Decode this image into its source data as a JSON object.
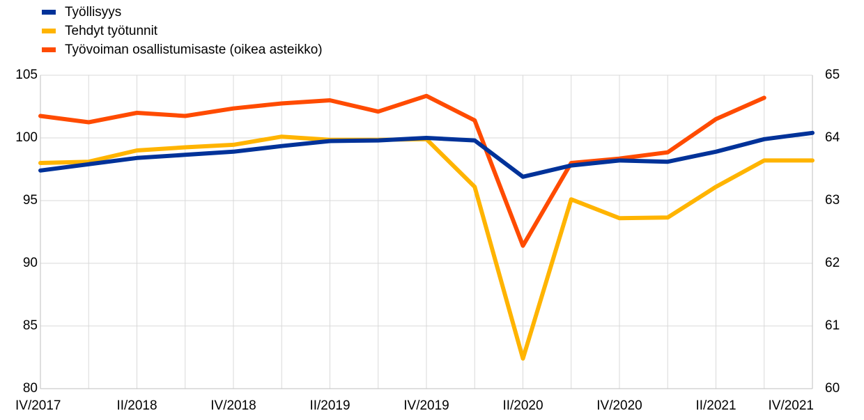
{
  "chart_data": {
    "type": "line",
    "categories": [
      "IV/2017",
      "I/2018",
      "II/2018",
      "III/2018",
      "IV/2018",
      "I/2019",
      "II/2019",
      "III/2019",
      "IV/2019",
      "I/2020",
      "II/2020",
      "III/2020",
      "IV/2020",
      "I/2021",
      "II/2021",
      "III/2021",
      "IV/2021"
    ],
    "x_tick_labels": [
      "IV/2017",
      "II/2018",
      "IV/2018",
      "II/2019",
      "IV/2019",
      "II/2020",
      "IV/2020",
      "II/2021",
      "IV/2021"
    ],
    "left_axis": {
      "ylim": [
        80,
        105
      ],
      "ticks": [
        "80",
        "85",
        "90",
        "95",
        "100",
        "105"
      ]
    },
    "right_axis": {
      "ylim": [
        60,
        65
      ],
      "ticks": [
        "60",
        "61",
        "62",
        "63",
        "64",
        "65"
      ]
    },
    "grid": true,
    "legend_position": "top-left",
    "series": [
      {
        "name": "Työllisyys",
        "color": "#003299",
        "axis": "left",
        "values": [
          97.4,
          97.9,
          98.4,
          98.65,
          98.9,
          99.35,
          99.75,
          99.8,
          100.0,
          99.8,
          96.9,
          97.8,
          98.2,
          98.1,
          98.9,
          99.9,
          100.4
        ]
      },
      {
        "name": "Tehdyt työtunnit",
        "color": "#FFB400",
        "axis": "left",
        "values": [
          98.0,
          98.1,
          99.0,
          99.25,
          99.45,
          100.1,
          99.85,
          99.85,
          99.9,
          96.1,
          82.4,
          95.1,
          93.6,
          93.65,
          96.1,
          98.2,
          98.2
        ]
      },
      {
        "name": "Työvoiman osallistumisaste (oikea asteikko)",
        "color": "#FF4B00",
        "axis": "right",
        "values": [
          64.35,
          64.25,
          64.4,
          64.35,
          64.47,
          64.55,
          64.6,
          64.42,
          64.67,
          64.28,
          62.28,
          63.6,
          63.67,
          63.77,
          64.3,
          64.64,
          null
        ]
      }
    ]
  }
}
